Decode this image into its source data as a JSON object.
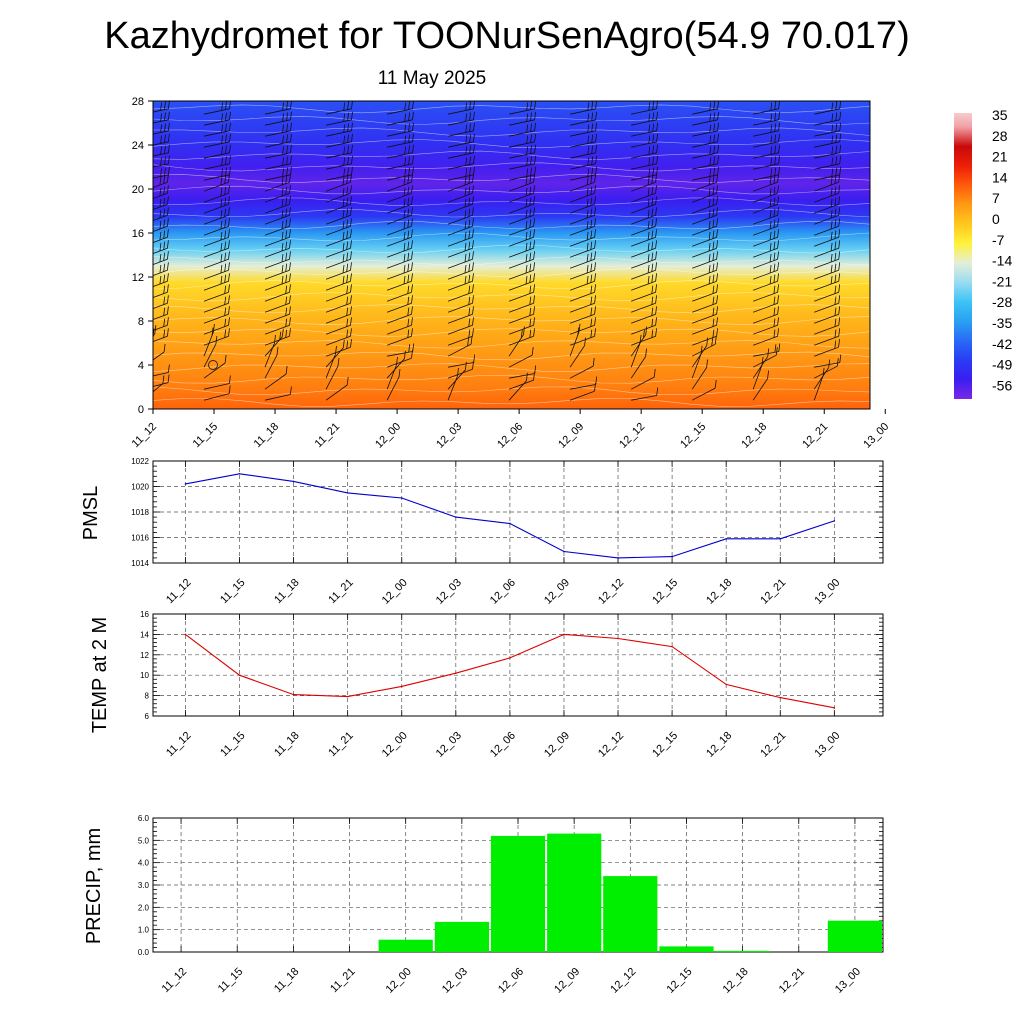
{
  "header": {
    "title": "Kazhydromet for TOONurSenAgro(54.9 70.017)",
    "date": "11 May 2025"
  },
  "time_labels": [
    "11_12",
    "11_15",
    "11_18",
    "11_21",
    "12_00",
    "12_03",
    "12_06",
    "12_09",
    "12_12",
    "12_15",
    "12_18",
    "12_21",
    "13_00"
  ],
  "chart_data": [
    {
      "type": "heatmap",
      "title": "",
      "xlabel": "",
      "ylabel": "",
      "categories": [
        "11_12",
        "11_15",
        "11_18",
        "11_21",
        "12_00",
        "12_03",
        "12_06",
        "12_09",
        "12_12",
        "12_15",
        "12_18",
        "12_21",
        "13_00"
      ],
      "ylim": [
        0,
        28
      ],
      "yticks": [
        0,
        4,
        8,
        12,
        16,
        20,
        24,
        28
      ],
      "colorbar": {
        "labels": [
          "35",
          "28",
          "21",
          "14",
          "7",
          "0",
          "-7",
          "-14",
          "-21",
          "-28",
          "-35",
          "-42",
          "-49",
          "-56"
        ],
        "stops": [
          {
            "v": -63,
            "c": "#7a28e6"
          },
          {
            "v": -56,
            "c": "#3a1ef0"
          },
          {
            "v": -49,
            "c": "#2a3cf4"
          },
          {
            "v": -42,
            "c": "#2a6af6"
          },
          {
            "v": -35,
            "c": "#2aa0f2"
          },
          {
            "v": -28,
            "c": "#3cc4f4"
          },
          {
            "v": -21,
            "c": "#9adcf2"
          },
          {
            "v": -14,
            "c": "#e4eed8"
          },
          {
            "v": -7,
            "c": "#fff23a"
          },
          {
            "v": 0,
            "c": "#ffc81e"
          },
          {
            "v": 7,
            "c": "#ff9a14"
          },
          {
            "v": 14,
            "c": "#ff5a0a"
          },
          {
            "v": 21,
            "c": "#ec1e08"
          },
          {
            "v": 28,
            "c": "#c80a0a"
          },
          {
            "v": 35,
            "c": "#f2a0a6"
          },
          {
            "v": 40,
            "c": "#f6cccc"
          }
        ]
      },
      "temperature_profile": [
        {
          "h": 0,
          "t": 13
        },
        {
          "h": 2,
          "t": 10
        },
        {
          "h": 4,
          "t": 8
        },
        {
          "h": 8,
          "t": 3
        },
        {
          "h": 11.5,
          "t": -3
        },
        {
          "h": 13,
          "t": -14
        },
        {
          "h": 14.5,
          "t": -25
        },
        {
          "h": 16,
          "t": -36
        },
        {
          "h": 17.5,
          "t": -50
        },
        {
          "h": 19,
          "t": -56
        },
        {
          "h": 20.5,
          "t": -60
        },
        {
          "h": 22,
          "t": -57
        },
        {
          "h": 24,
          "t": -52
        },
        {
          "h": 28,
          "t": -46
        }
      ]
    },
    {
      "type": "line",
      "title": "",
      "xlabel": "",
      "ylabel": "PMSL",
      "categories": [
        "11_12",
        "11_15",
        "11_18",
        "11_21",
        "12_00",
        "12_03",
        "12_06",
        "12_09",
        "12_12",
        "12_15",
        "12_18",
        "12_21",
        "13_00"
      ],
      "values": [
        1020.2,
        1021.0,
        1020.4,
        1019.5,
        1019.1,
        1017.6,
        1017.1,
        1014.9,
        1014.4,
        1014.5,
        1015.9,
        1015.9,
        1017.3
      ],
      "ylim": [
        1014,
        1022
      ],
      "yticks": [
        1014,
        1016,
        1018,
        1020,
        1022
      ],
      "color": "#0000cc"
    },
    {
      "type": "line",
      "title": "",
      "xlabel": "",
      "ylabel": "TEMP at 2 M",
      "categories": [
        "11_12",
        "11_15",
        "11_18",
        "11_21",
        "12_00",
        "12_03",
        "12_06",
        "12_09",
        "12_12",
        "12_15",
        "12_18",
        "12_21",
        "13_00"
      ],
      "values": [
        14.0,
        10.0,
        8.1,
        7.9,
        8.9,
        10.2,
        11.7,
        14.0,
        13.6,
        12.8,
        9.1,
        7.8,
        6.8
      ],
      "ylim": [
        6,
        16
      ],
      "yticks": [
        6,
        8,
        10,
        12,
        14,
        16
      ],
      "color": "#dd0000"
    },
    {
      "type": "bar",
      "title": "",
      "xlabel": "",
      "ylabel": "PRECIP, mm",
      "categories": [
        "11_12",
        "11_15",
        "11_18",
        "11_21",
        "12_00",
        "12_03",
        "12_06",
        "12_09",
        "12_12",
        "12_15",
        "12_18",
        "12_21",
        "13_00"
      ],
      "values": [
        0.0,
        0.0,
        0.0,
        0.0,
        0.55,
        1.35,
        5.2,
        5.3,
        3.4,
        0.25,
        0.05,
        0.0,
        1.4
      ],
      "ylim": [
        0,
        6
      ],
      "yticks": [
        "0.0",
        "1.0",
        "2.0",
        "3.0",
        "4.0",
        "5.0",
        "6.0"
      ],
      "color": "#00ee00"
    }
  ]
}
